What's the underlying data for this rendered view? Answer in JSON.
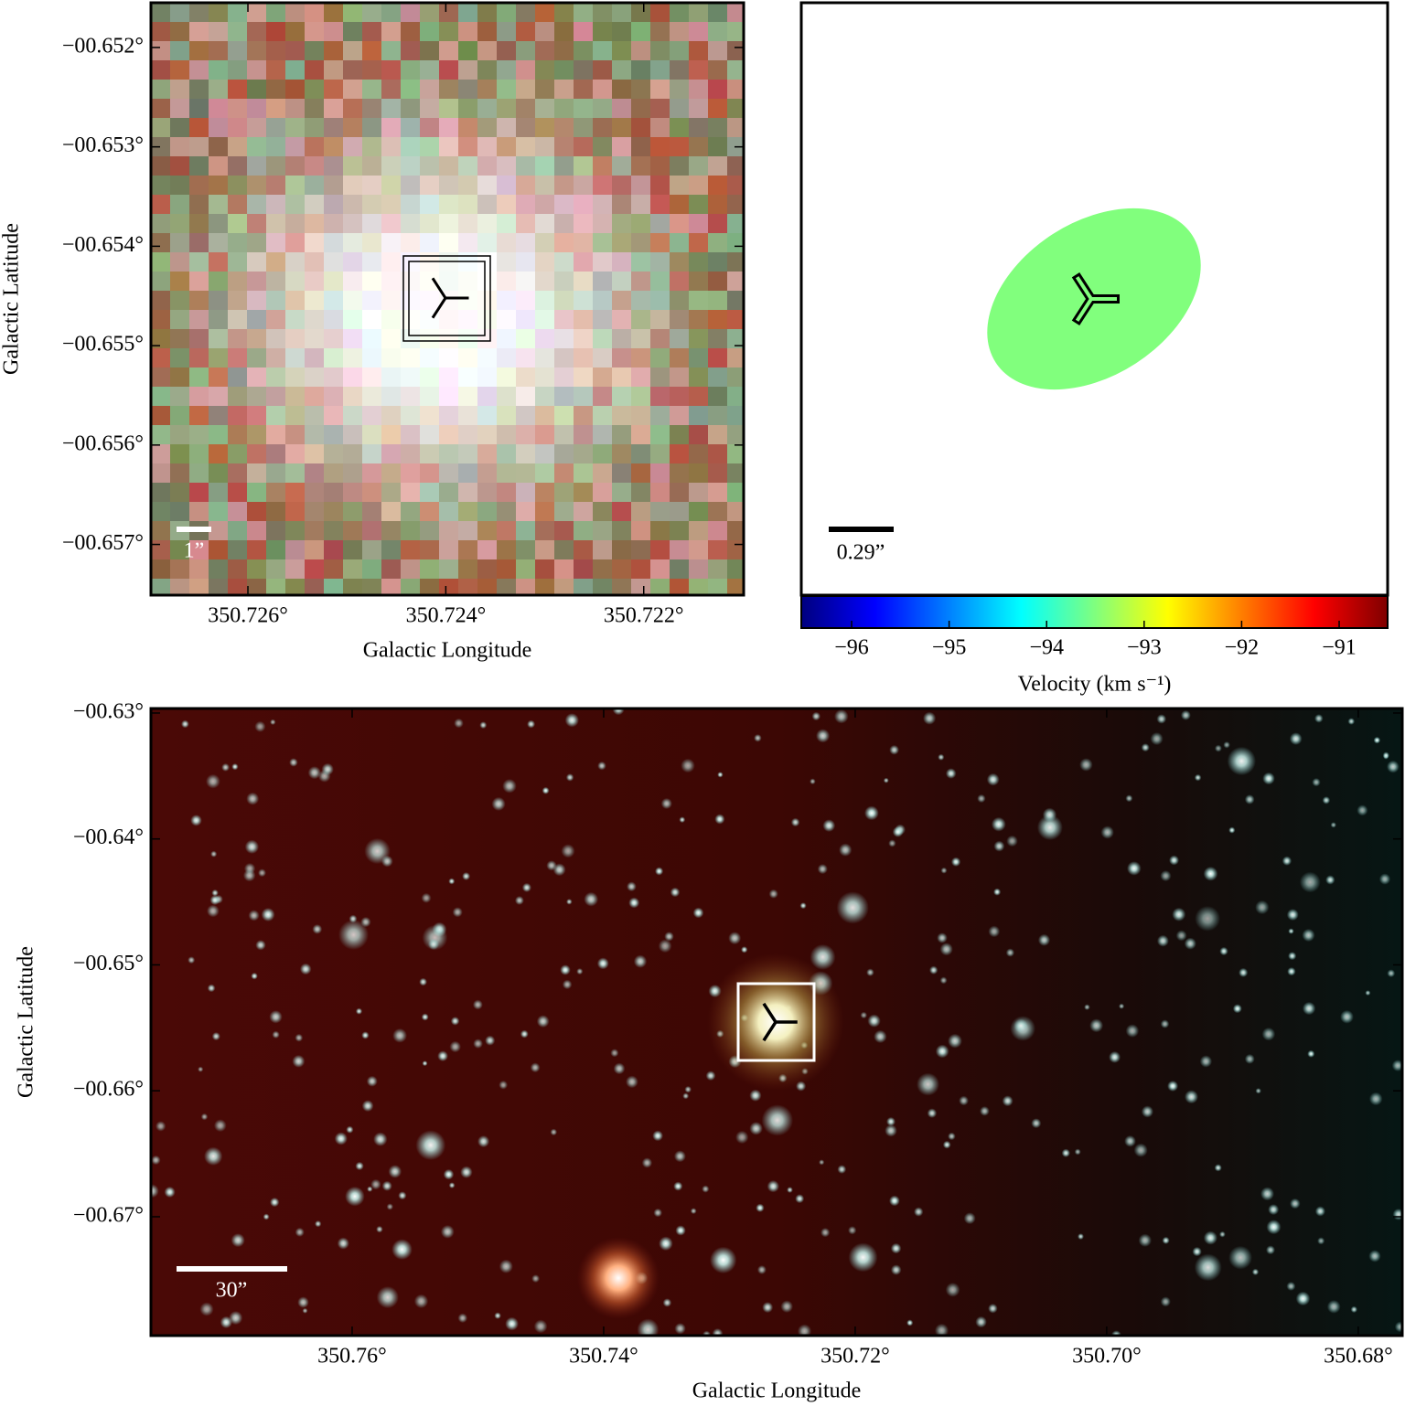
{
  "chart_data": [
    {
      "type": "image",
      "xlabel": "Galactic Longitude",
      "ylabel": "Galactic Latitude",
      "xlim": [
        350.72698,
        350.72099
      ],
      "ylim": [
        -0.65751,
        -0.65155
      ],
      "xticks": [
        {
          "value": 350.726,
          "label": "350.726°"
        },
        {
          "value": 350.724,
          "label": "350.724°"
        },
        {
          "value": 350.722,
          "label": "350.722°"
        }
      ],
      "yticks": [
        {
          "value": -0.652,
          "label": "−00.652°"
        },
        {
          "value": -0.653,
          "label": "−00.653°"
        },
        {
          "value": -0.654,
          "label": "−00.654°"
        },
        {
          "value": -0.655,
          "label": "−00.655°"
        },
        {
          "value": -0.656,
          "label": "−00.656°"
        },
        {
          "value": -0.657,
          "label": "−00.657°"
        }
      ],
      "scale_bar": "1”"
    },
    {
      "type": "velocity",
      "scale_bar": "0.29”",
      "value": -93.5,
      "colorbar": {
        "label": "Velocity (km s⁻¹)",
        "lim": [
          -96.516,
          -90.503
        ],
        "ticks": [
          {
            "value": -96,
            "label": "−96"
          },
          {
            "value": -95,
            "label": "−95"
          },
          {
            "value": -94,
            "label": "−94"
          },
          {
            "value": -93,
            "label": "−93"
          },
          {
            "value": -92,
            "label": "−92"
          },
          {
            "value": -91,
            "label": "−91"
          }
        ]
      }
    },
    {
      "type": "image",
      "xlabel": "Galactic Longitude",
      "ylabel": "Galactic Latitude",
      "xlim": [
        350.776,
        350.6765
      ],
      "ylim": [
        -0.67944,
        -0.62964
      ],
      "xticks": [
        {
          "value": 350.76,
          "label": "350.76°"
        },
        {
          "value": 350.74,
          "label": "350.74°"
        },
        {
          "value": 350.72,
          "label": "350.72°"
        },
        {
          "value": 350.7,
          "label": "350.70°"
        },
        {
          "value": 350.68,
          "label": "350.68°"
        }
      ],
      "yticks": [
        {
          "value": -0.63,
          "label": "−00.63°"
        },
        {
          "value": -0.64,
          "label": "−00.64°"
        },
        {
          "value": -0.65,
          "label": "−00.65°"
        },
        {
          "value": -0.66,
          "label": "−00.66°"
        },
        {
          "value": -0.67,
          "label": "−00.67°"
        }
      ],
      "scale_bar": "30”"
    }
  ]
}
